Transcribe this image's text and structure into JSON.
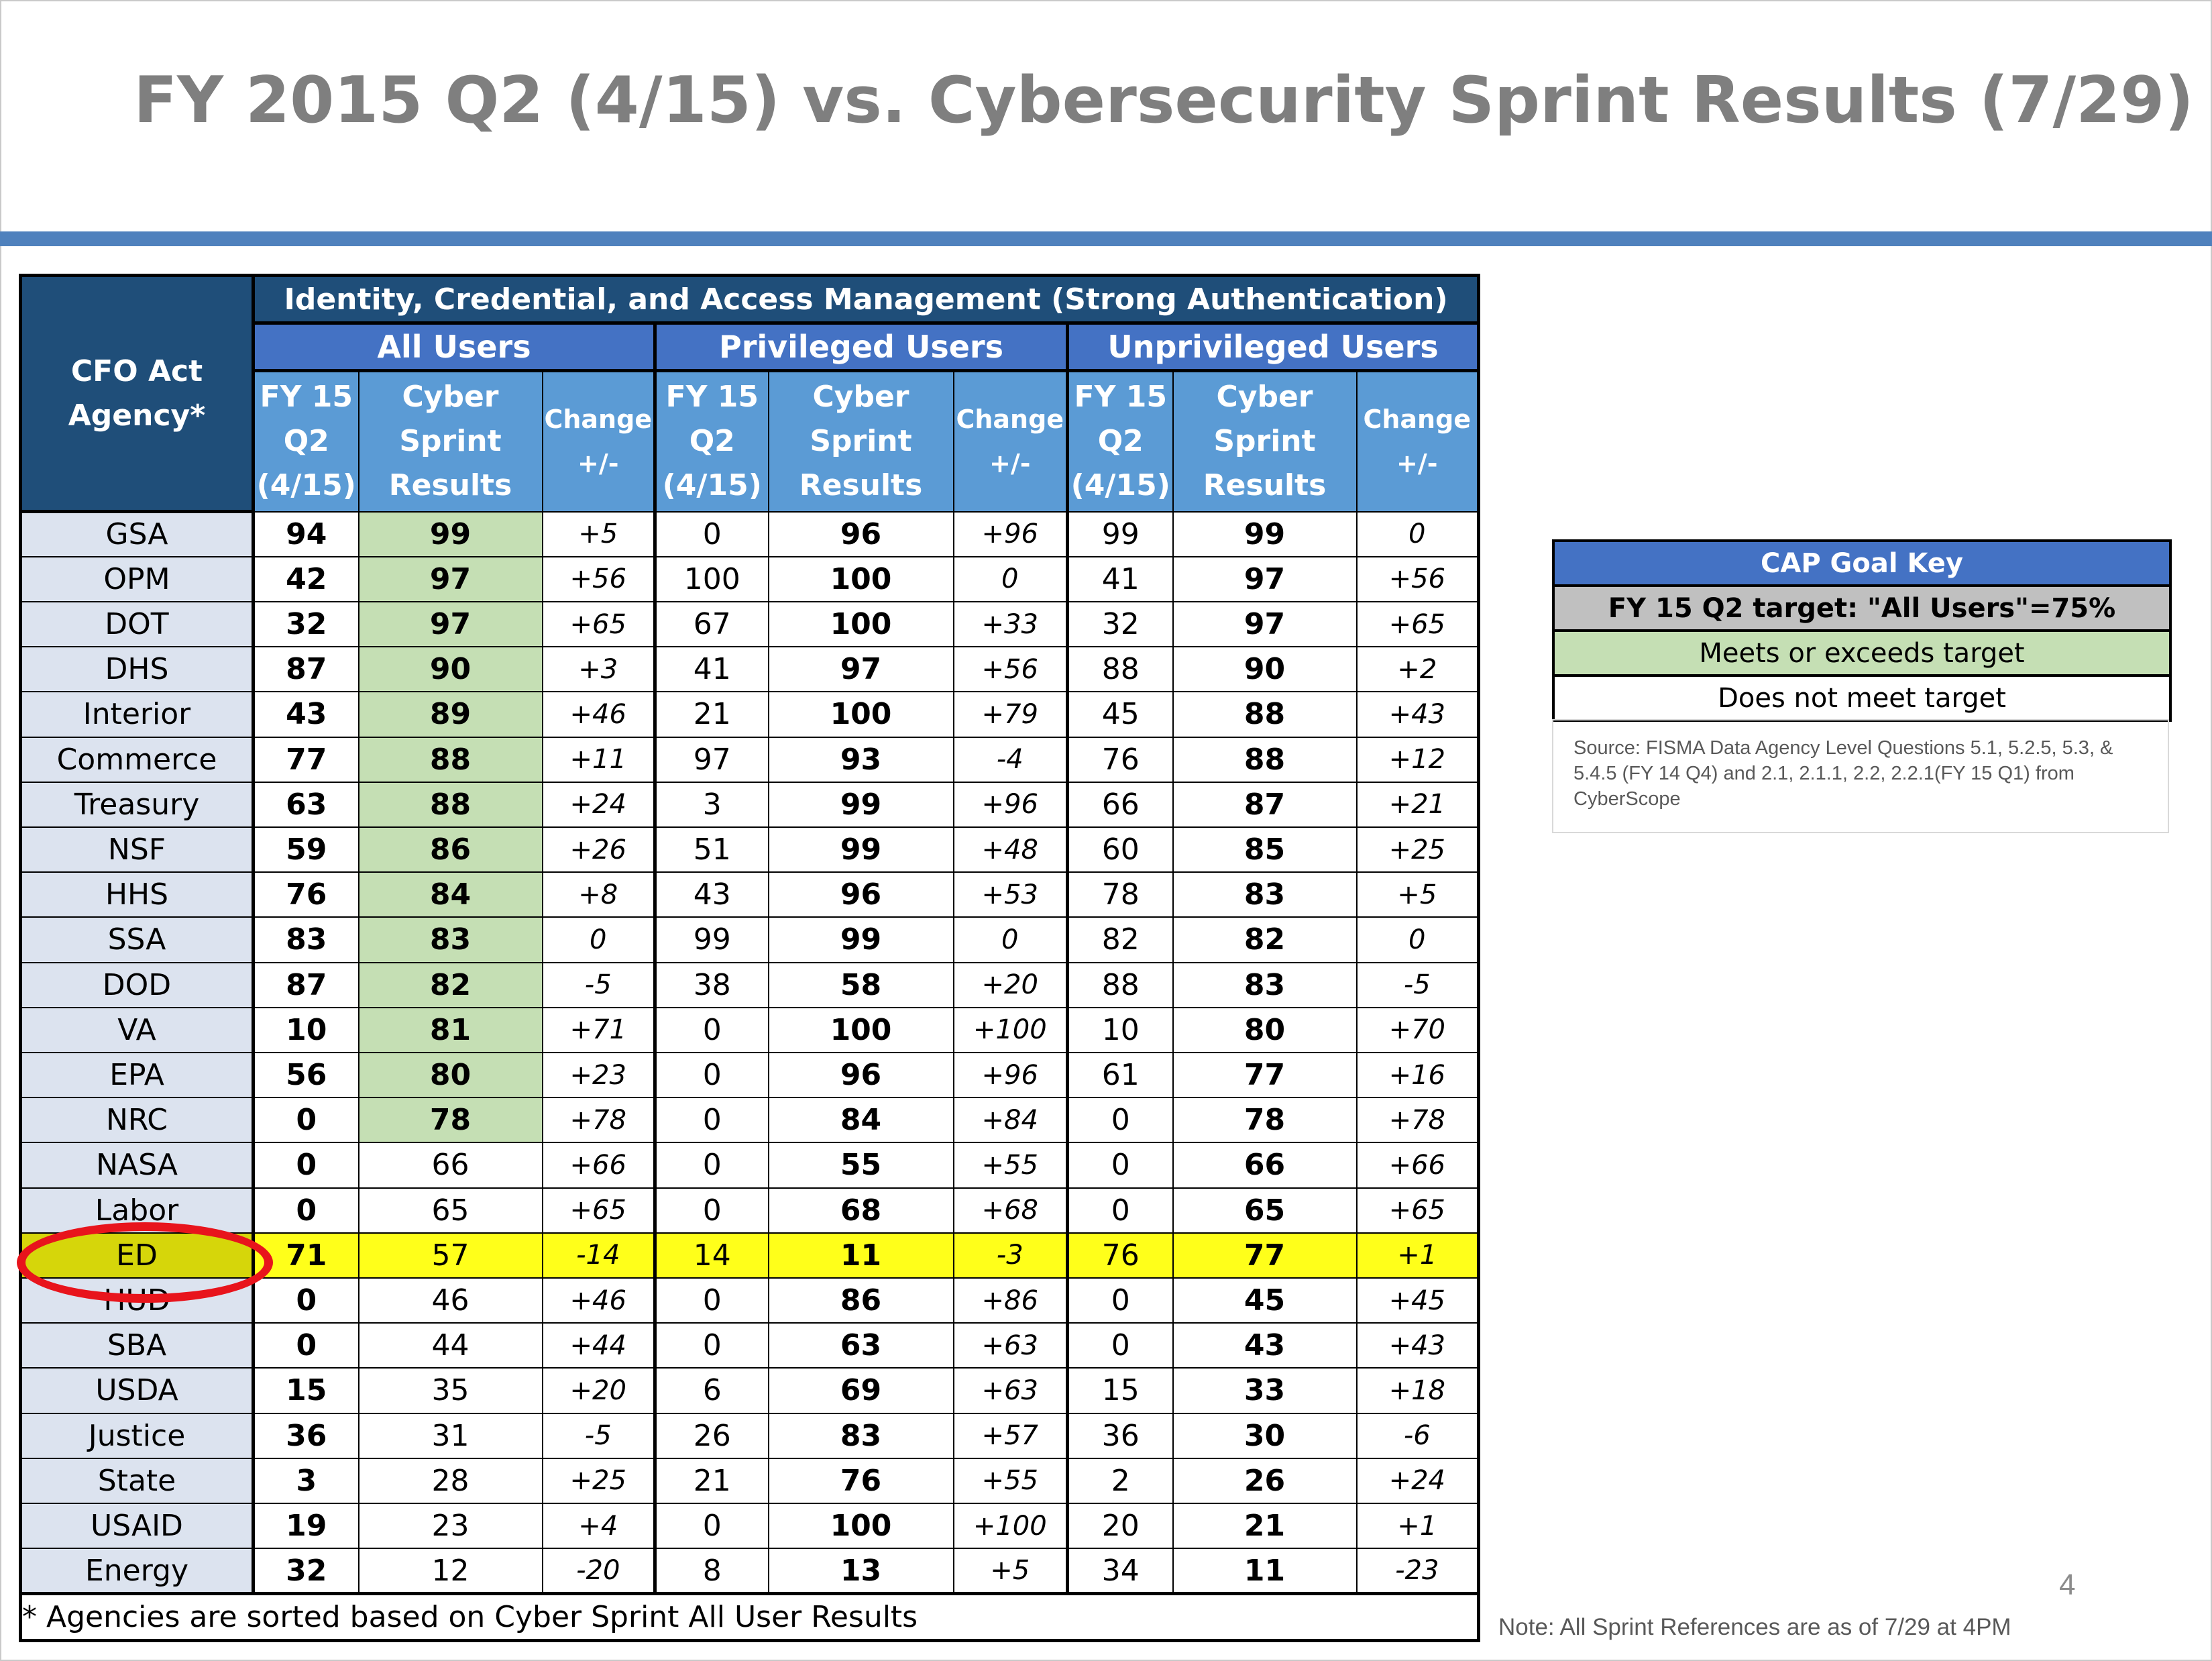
{
  "title": "FY 2015 Q2 (4/15) vs. Cybersecurity Sprint Results (7/29)",
  "table": {
    "agency_header": "CFO Act Agency*",
    "top_header": "Identity, Credential, and Access Management (Strong Authentication)",
    "groups": [
      "All Users",
      "Privileged Users",
      "Unprivileged Users"
    ],
    "col_fy": "FY 15 Q2 (4/15)",
    "col_cyber": "Cyber Sprint Results",
    "col_change": "Change +/-",
    "rows": [
      {
        "agency": "GSA",
        "all_fy": "94",
        "all_cyber": "99",
        "all_chg": "+5",
        "priv_fy": "0",
        "priv_cyber": "96",
        "priv_chg": "+96",
        "unpriv_fy": "99",
        "unpriv_cyber": "99",
        "unpriv_chg": "0",
        "meets": true
      },
      {
        "agency": "OPM",
        "all_fy": "42",
        "all_cyber": "97",
        "all_chg": "+56",
        "priv_fy": "100",
        "priv_cyber": "100",
        "priv_chg": "0",
        "unpriv_fy": "41",
        "unpriv_cyber": "97",
        "unpriv_chg": "+56",
        "meets": true
      },
      {
        "agency": "DOT",
        "all_fy": "32",
        "all_cyber": "97",
        "all_chg": "+65",
        "priv_fy": "67",
        "priv_cyber": "100",
        "priv_chg": "+33",
        "unpriv_fy": "32",
        "unpriv_cyber": "97",
        "unpriv_chg": "+65",
        "meets": true
      },
      {
        "agency": "DHS",
        "all_fy": "87",
        "all_cyber": "90",
        "all_chg": "+3",
        "priv_fy": "41",
        "priv_cyber": "97",
        "priv_chg": "+56",
        "unpriv_fy": "88",
        "unpriv_cyber": "90",
        "unpriv_chg": "+2",
        "meets": true
      },
      {
        "agency": "Interior",
        "all_fy": "43",
        "all_cyber": "89",
        "all_chg": "+46",
        "priv_fy": "21",
        "priv_cyber": "100",
        "priv_chg": "+79",
        "unpriv_fy": "45",
        "unpriv_cyber": "88",
        "unpriv_chg": "+43",
        "meets": true
      },
      {
        "agency": "Commerce",
        "all_fy": "77",
        "all_cyber": "88",
        "all_chg": "+11",
        "priv_fy": "97",
        "priv_cyber": "93",
        "priv_chg": "-4",
        "unpriv_fy": "76",
        "unpriv_cyber": "88",
        "unpriv_chg": "+12",
        "meets": true
      },
      {
        "agency": "Treasury",
        "all_fy": "63",
        "all_cyber": "88",
        "all_chg": "+24",
        "priv_fy": "3",
        "priv_cyber": "99",
        "priv_chg": "+96",
        "unpriv_fy": "66",
        "unpriv_cyber": "87",
        "unpriv_chg": "+21",
        "meets": true
      },
      {
        "agency": "NSF",
        "all_fy": "59",
        "all_cyber": "86",
        "all_chg": "+26",
        "priv_fy": "51",
        "priv_cyber": "99",
        "priv_chg": "+48",
        "unpriv_fy": "60",
        "unpriv_cyber": "85",
        "unpriv_chg": "+25",
        "meets": true
      },
      {
        "agency": "HHS",
        "all_fy": "76",
        "all_cyber": "84",
        "all_chg": "+8",
        "priv_fy": "43",
        "priv_cyber": "96",
        "priv_chg": "+53",
        "unpriv_fy": "78",
        "unpriv_cyber": "83",
        "unpriv_chg": "+5",
        "meets": true
      },
      {
        "agency": "SSA",
        "all_fy": "83",
        "all_cyber": "83",
        "all_chg": "0",
        "priv_fy": "99",
        "priv_cyber": "99",
        "priv_chg": "0",
        "unpriv_fy": "82",
        "unpriv_cyber": "82",
        "unpriv_chg": "0",
        "meets": true
      },
      {
        "agency": "DOD",
        "all_fy": "87",
        "all_cyber": "82",
        "all_chg": "-5",
        "priv_fy": "38",
        "priv_cyber": "58",
        "priv_chg": "+20",
        "unpriv_fy": "88",
        "unpriv_cyber": "83",
        "unpriv_chg": "-5",
        "meets": true
      },
      {
        "agency": "VA",
        "all_fy": "10",
        "all_cyber": "81",
        "all_chg": "+71",
        "priv_fy": "0",
        "priv_cyber": "100",
        "priv_chg": "+100",
        "unpriv_fy": "10",
        "unpriv_cyber": "80",
        "unpriv_chg": "+70",
        "meets": true
      },
      {
        "agency": "EPA",
        "all_fy": "56",
        "all_cyber": "80",
        "all_chg": "+23",
        "priv_fy": "0",
        "priv_cyber": "96",
        "priv_chg": "+96",
        "unpriv_fy": "61",
        "unpriv_cyber": "77",
        "unpriv_chg": "+16",
        "meets": true
      },
      {
        "agency": "NRC",
        "all_fy": "0",
        "all_cyber": "78",
        "all_chg": "+78",
        "priv_fy": "0",
        "priv_cyber": "84",
        "priv_chg": "+84",
        "unpriv_fy": "0",
        "unpriv_cyber": "78",
        "unpriv_chg": "+78",
        "meets": true
      },
      {
        "agency": "NASA",
        "all_fy": "0",
        "all_cyber": "66",
        "all_chg": "+66",
        "priv_fy": "0",
        "priv_cyber": "55",
        "priv_chg": "+55",
        "unpriv_fy": "0",
        "unpriv_cyber": "66",
        "unpriv_chg": "+66",
        "meets": false
      },
      {
        "agency": "Labor",
        "all_fy": "0",
        "all_cyber": "65",
        "all_chg": "+65",
        "priv_fy": "0",
        "priv_cyber": "68",
        "priv_chg": "+68",
        "unpriv_fy": "0",
        "unpriv_cyber": "65",
        "unpriv_chg": "+65",
        "meets": false
      },
      {
        "agency": "ED",
        "all_fy": "71",
        "all_cyber": "57",
        "all_chg": "-14",
        "priv_fy": "14",
        "priv_cyber": "11",
        "priv_chg": "-3",
        "unpriv_fy": "76",
        "unpriv_cyber": "77",
        "unpriv_chg": "+1",
        "meets": false,
        "highlight": true
      },
      {
        "agency": "HUD",
        "all_fy": "0",
        "all_cyber": "46",
        "all_chg": "+46",
        "priv_fy": "0",
        "priv_cyber": "86",
        "priv_chg": "+86",
        "unpriv_fy": "0",
        "unpriv_cyber": "45",
        "unpriv_chg": "+45",
        "meets": false
      },
      {
        "agency": "SBA",
        "all_fy": "0",
        "all_cyber": "44",
        "all_chg": "+44",
        "priv_fy": "0",
        "priv_cyber": "63",
        "priv_chg": "+63",
        "unpriv_fy": "0",
        "unpriv_cyber": "43",
        "unpriv_chg": "+43",
        "meets": false
      },
      {
        "agency": "USDA",
        "all_fy": "15",
        "all_cyber": "35",
        "all_chg": "+20",
        "priv_fy": "6",
        "priv_cyber": "69",
        "priv_chg": "+63",
        "unpriv_fy": "15",
        "unpriv_cyber": "33",
        "unpriv_chg": "+18",
        "meets": false
      },
      {
        "agency": "Justice",
        "all_fy": "36",
        "all_cyber": "31",
        "all_chg": "-5",
        "priv_fy": "26",
        "priv_cyber": "83",
        "priv_chg": "+57",
        "unpriv_fy": "36",
        "unpriv_cyber": "30",
        "unpriv_chg": "-6",
        "meets": false
      },
      {
        "agency": "State",
        "all_fy": "3",
        "all_cyber": "28",
        "all_chg": "+25",
        "priv_fy": "21",
        "priv_cyber": "76",
        "priv_chg": "+55",
        "unpriv_fy": "2",
        "unpriv_cyber": "26",
        "unpriv_chg": "+24",
        "meets": false
      },
      {
        "agency": "USAID",
        "all_fy": "19",
        "all_cyber": "23",
        "all_chg": "+4",
        "priv_fy": "0",
        "priv_cyber": "100",
        "priv_chg": "+100",
        "unpriv_fy": "20",
        "unpriv_cyber": "21",
        "unpriv_chg": "+1",
        "meets": false
      },
      {
        "agency": "Energy",
        "all_fy": "32",
        "all_cyber": "12",
        "all_chg": "-20",
        "priv_fy": "8",
        "priv_cyber": "13",
        "priv_chg": "+5",
        "unpriv_fy": "34",
        "unpriv_cyber": "11",
        "unpriv_chg": "-23",
        "meets": false
      }
    ],
    "footnote": "* Agencies are sorted based on Cyber Sprint All User Results"
  },
  "key": {
    "title": "CAP Goal Key",
    "target": "FY 15 Q2 target: \"All Users\"=75%",
    "meets": "Meets or exceeds target",
    "not_meets": "Does not meet target"
  },
  "source": "Source: FISMA Data Agency Level Questions 5.1, 5.2.5, 5.3, & 5.4.5 (FY 14 Q4) and 2.1, 2.1.1, 2.2, 2.2.1(FY 15 Q1) from CyberScope",
  "note": "Note: All Sprint References are as of 7/29 at 4PM",
  "page_number": "4",
  "colors": {
    "meets": "#c5dfb4",
    "highlight": "#ffff1a",
    "header_dark": "#1f4e79",
    "header_mid": "#4472c4",
    "header_light": "#5b9bd5",
    "annotation_ring": "#e8141c"
  }
}
